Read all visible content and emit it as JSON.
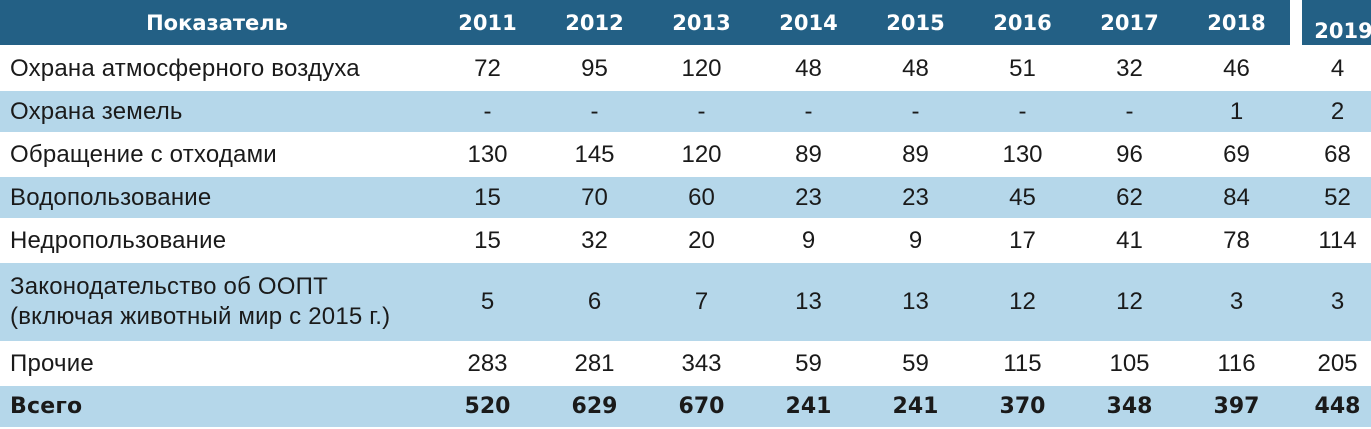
{
  "table": {
    "header": {
      "label": "Показатель",
      "years": [
        "2011",
        "2012",
        "2013",
        "2014",
        "2015",
        "2016",
        "2017",
        "2018",
        "2019"
      ]
    },
    "rows": [
      {
        "name": "Охрана атмосферного воздуха",
        "values": [
          "72",
          "95",
          "120",
          "48",
          "48",
          "51",
          "32",
          "46",
          "4"
        ]
      },
      {
        "name": "Охрана земель",
        "values": [
          "-",
          "-",
          "-",
          "-",
          "-",
          "-",
          "-",
          "1",
          "2"
        ]
      },
      {
        "name": "Обращение с отходами",
        "values": [
          "130",
          "145",
          "120",
          "89",
          "89",
          "130",
          "96",
          "69",
          "68"
        ]
      },
      {
        "name": "Водопользование",
        "values": [
          "15",
          "70",
          "60",
          "23",
          "23",
          "45",
          "62",
          "84",
          "52"
        ]
      },
      {
        "name": "Недропользование",
        "values": [
          "15",
          "32",
          "20",
          "9",
          "9",
          "17",
          "41",
          "78",
          "114"
        ]
      },
      {
        "name_lines": [
          "Законодательство об ООПТ",
          "(включая животный мир с 2015 г.)"
        ],
        "values": [
          "5",
          "6",
          "7",
          "13",
          "13",
          "12",
          "12",
          "3",
          "3"
        ]
      },
      {
        "name": "Прочие",
        "values": [
          "283",
          "281",
          "343",
          "59",
          "59",
          "115",
          "105",
          "116",
          "205"
        ]
      }
    ],
    "total": {
      "name": "Всего",
      "values": [
        "520",
        "629",
        "670",
        "241",
        "241",
        "370",
        "348",
        "397",
        "448"
      ]
    }
  },
  "colors": {
    "header_bg": "#236085",
    "header_text": "#ffffff",
    "alt_row_bg": "#b5d7ea",
    "text": "#1a1a1a"
  }
}
